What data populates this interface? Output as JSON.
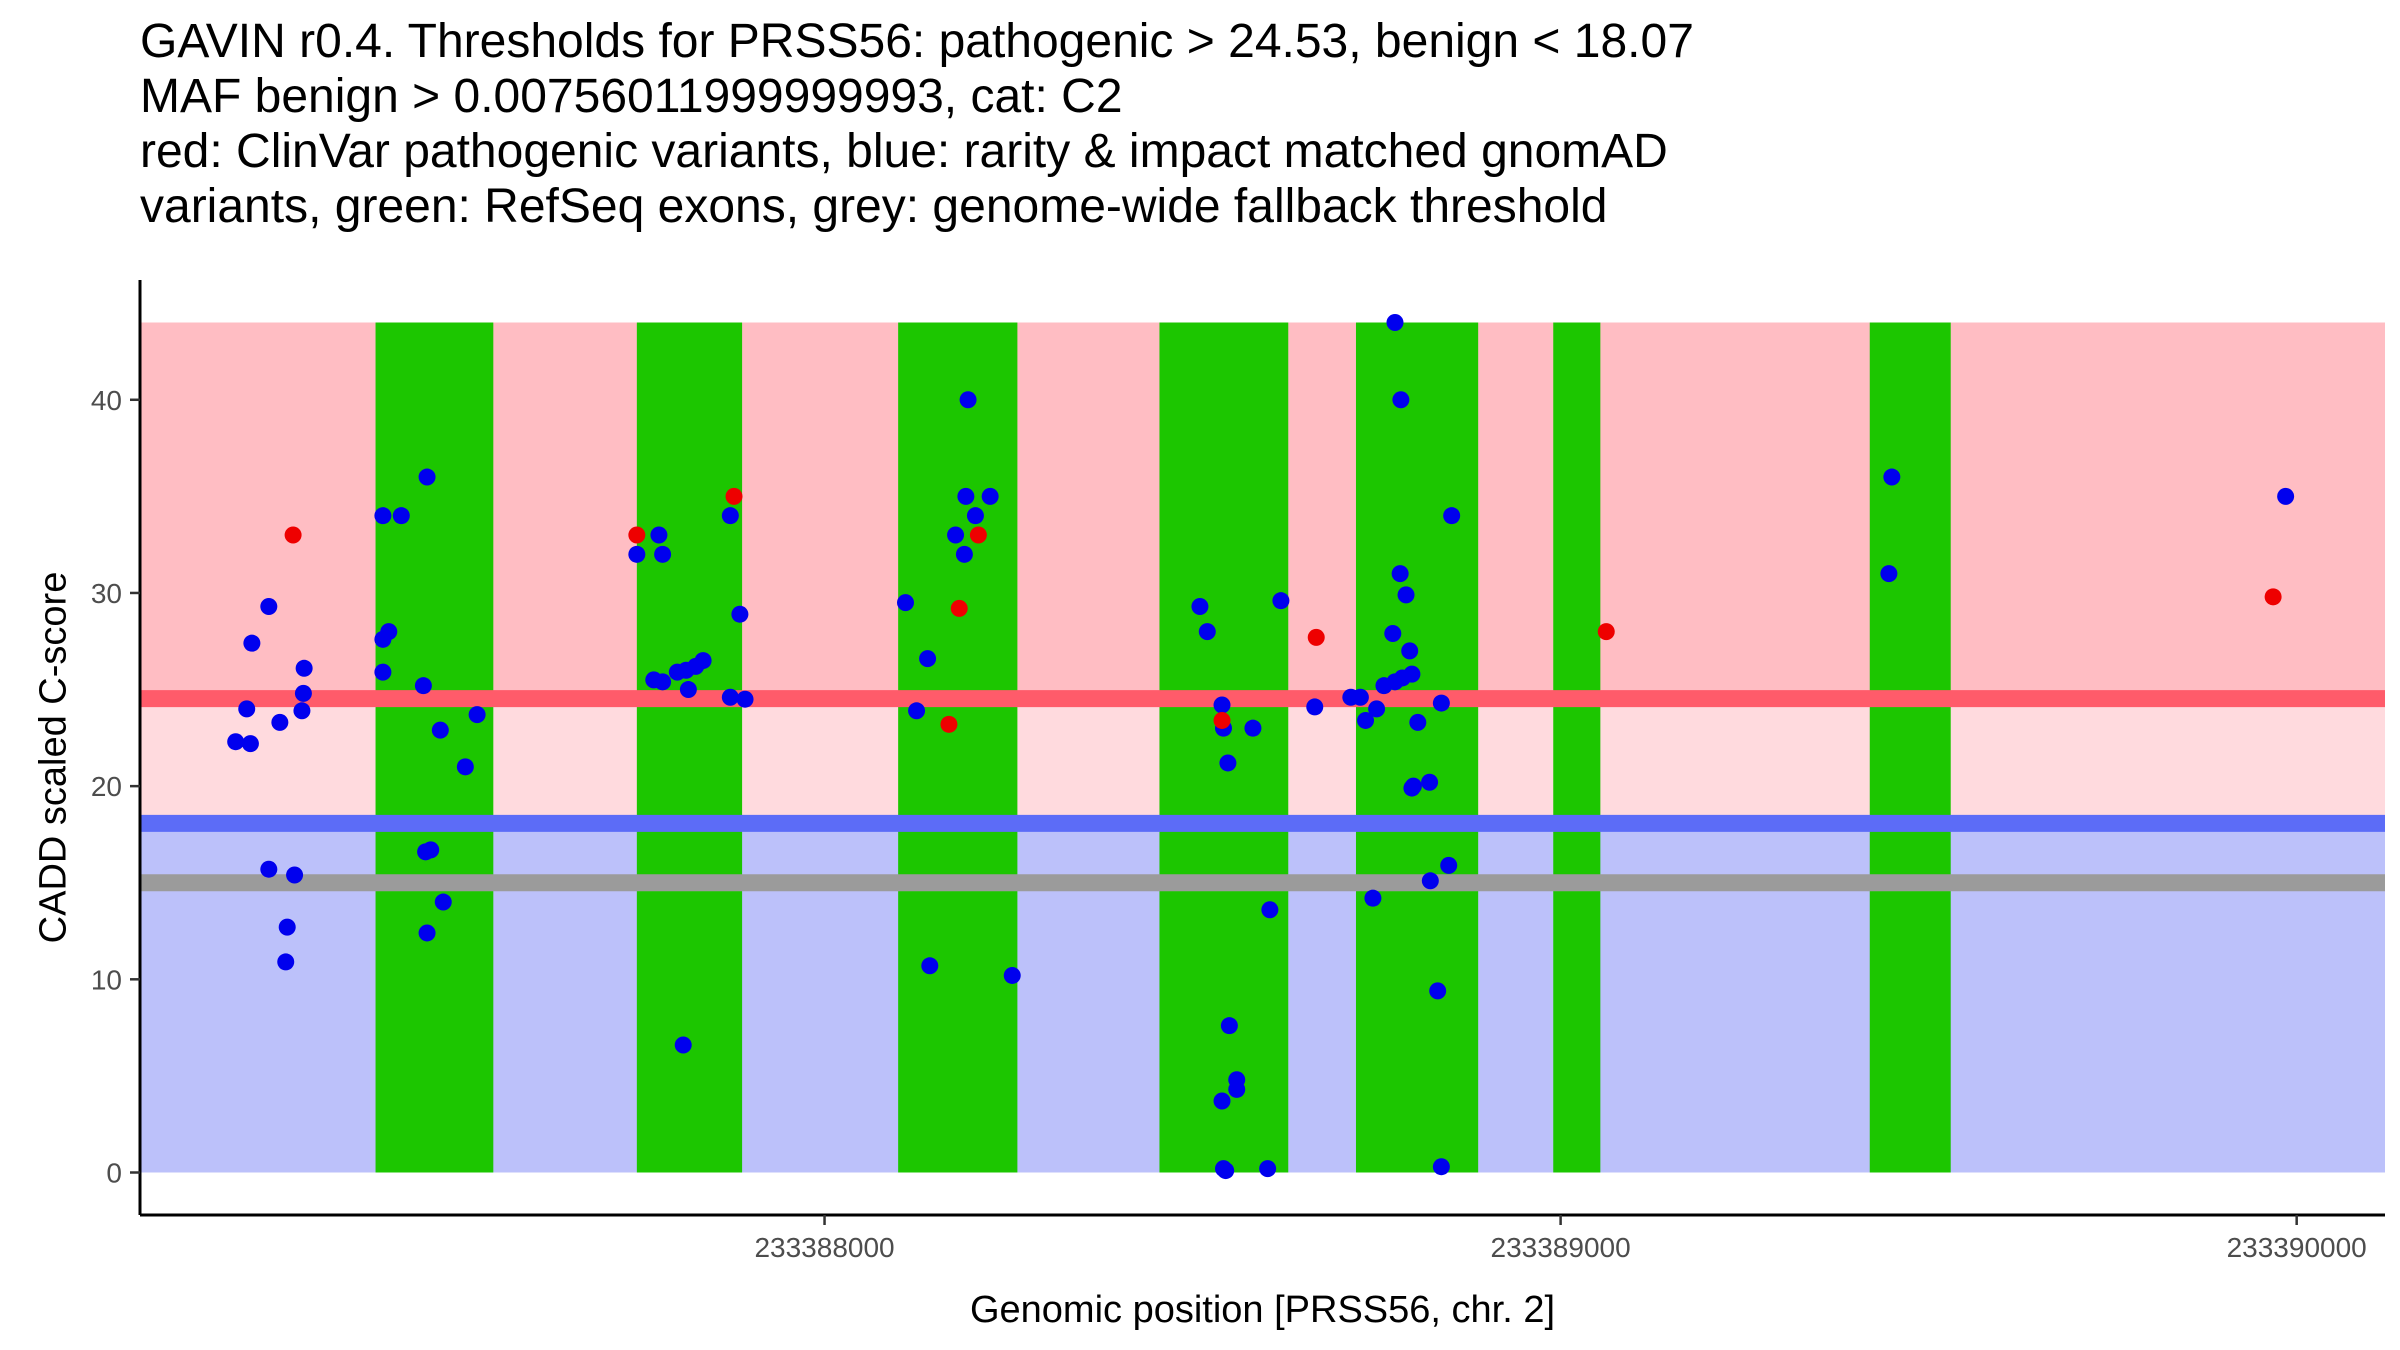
{
  "title_lines": [
    "GAVIN r0.4. Thresholds for PRSS56: pathogenic > 24.53, benign < 18.07",
    "MAF benign > 0.00756011999999993, cat: C2",
    "red: ClinVar pathogenic variants, blue: rarity & impact matched gnomAD",
    "variants, green: RefSeq exons, grey: genome-wide fallback threshold"
  ],
  "colors": {
    "pathogenic_zone": "#ffbdc3",
    "uncertain_zone": "#ffdade",
    "benign_zone": "#bcc1fa",
    "exon": "#1cc600",
    "pathogenic_line": "#ff5b6a",
    "benign_line": "#5c6cf7",
    "fallback_line": "#9b9b9b",
    "clinvar_point": "#ee0000",
    "gnomad_point": "#0000ee",
    "axis": "#000000"
  },
  "chart_data": {
    "type": "scatter",
    "xlabel": "Genomic position [PRSS56, chr. 2]",
    "ylabel": "CADD scaled C-score",
    "xlim": [
      233387070,
      233390120
    ],
    "ylim": [
      -2.2,
      46.2
    ],
    "x_ticks": [
      233388000,
      233389000,
      233390000
    ],
    "x_tick_labels": [
      "233388000",
      "233389000",
      "233390000"
    ],
    "y_ticks": [
      0,
      10,
      20,
      30,
      40
    ],
    "y_tick_labels": [
      "0",
      "10",
      "20",
      "30",
      "40"
    ],
    "thresholds": {
      "pathogenic": 24.53,
      "benign": 18.07,
      "fallback": 15,
      "max": 44
    },
    "exons": [
      [
        233387390,
        233387550
      ],
      [
        233387745,
        233387888
      ],
      [
        233388100,
        233388262
      ],
      [
        233388455,
        233388630
      ],
      [
        233388722,
        233388888
      ],
      [
        233388990,
        233389054
      ],
      [
        233389420,
        233389530
      ]
    ],
    "series": [
      {
        "name": "gnomAD",
        "color": "#0000ee",
        "points": [
          [
            233387200,
            22.3
          ],
          [
            233387220,
            22.2
          ],
          [
            233387215,
            24.0
          ],
          [
            233387222,
            27.4
          ],
          [
            233387245,
            29.3
          ],
          [
            233387260,
            23.3
          ],
          [
            233387290,
            23.9
          ],
          [
            233387292,
            24.8
          ],
          [
            233387293,
            26.1
          ],
          [
            233387245,
            15.7
          ],
          [
            233387280,
            15.4
          ],
          [
            233387270,
            12.7
          ],
          [
            233387268,
            10.9
          ],
          [
            233387400,
            34.0
          ],
          [
            233387425,
            34.0
          ],
          [
            233387460,
            36.0
          ],
          [
            233387400,
            25.9
          ],
          [
            233387400,
            27.6
          ],
          [
            233387408,
            28.0
          ],
          [
            233387455,
            25.2
          ],
          [
            233387478,
            22.9
          ],
          [
            233387512,
            21.0
          ],
          [
            233387528,
            23.7
          ],
          [
            233387458,
            16.6
          ],
          [
            233387465,
            16.7
          ],
          [
            233387482,
            14.0
          ],
          [
            233387460,
            12.4
          ],
          [
            233387745,
            32.0
          ],
          [
            233387775,
            33.0
          ],
          [
            233387780,
            32.0
          ],
          [
            233387768,
            25.5
          ],
          [
            233387780,
            25.4
          ],
          [
            233387800,
            25.9
          ],
          [
            233387812,
            26.0
          ],
          [
            233387825,
            26.2
          ],
          [
            233387835,
            26.5
          ],
          [
            233387815,
            25.0
          ],
          [
            233387872,
            34.0
          ],
          [
            233387885,
            28.9
          ],
          [
            233387872,
            24.6
          ],
          [
            233387892,
            24.5
          ],
          [
            233387808,
            6.6
          ],
          [
            233388110,
            29.5
          ],
          [
            233388140,
            26.6
          ],
          [
            233388125,
            23.9
          ],
          [
            233388178,
            33.0
          ],
          [
            233388192,
            35.0
          ],
          [
            233388225,
            35.0
          ],
          [
            233388190,
            32.0
          ],
          [
            233388205,
            34.0
          ],
          [
            233388195,
            40.0
          ],
          [
            233388143,
            10.7
          ],
          [
            233388255,
            10.2
          ],
          [
            233388510,
            29.3
          ],
          [
            233388520,
            28.0
          ],
          [
            233388540,
            24.2
          ],
          [
            233388542,
            23.0
          ],
          [
            233388548,
            21.2
          ],
          [
            233388582,
            23.0
          ],
          [
            233388605,
            13.6
          ],
          [
            233388620,
            29.6
          ],
          [
            233388666,
            24.1
          ],
          [
            233388550,
            7.6
          ],
          [
            233388560,
            4.8
          ],
          [
            233388560,
            4.3
          ],
          [
            233388540,
            3.7
          ],
          [
            233388545,
            0.1
          ],
          [
            233388542,
            0.2
          ],
          [
            233388602,
            0.2
          ],
          [
            233388715,
            24.6
          ],
          [
            233388728,
            24.6
          ],
          [
            233388735,
            23.4
          ],
          [
            233388750,
            24.0
          ],
          [
            233388760,
            25.2
          ],
          [
            233388775,
            25.4
          ],
          [
            233388772,
            27.9
          ],
          [
            233388782,
            31.0
          ],
          [
            233388785,
            25.6
          ],
          [
            233388790,
            29.9
          ],
          [
            233388798,
            25.8
          ],
          [
            233388795,
            27.0
          ],
          [
            233388806,
            23.3
          ],
          [
            233388822,
            20.2
          ],
          [
            233388798,
            19.9
          ],
          [
            233388800,
            20.0
          ],
          [
            233388838,
            24.3
          ],
          [
            233388823,
            15.1
          ],
          [
            233388848,
            15.9
          ],
          [
            233388745,
            14.2
          ],
          [
            233388833,
            9.4
          ],
          [
            233388838,
            0.3
          ],
          [
            233388775,
            44.0
          ],
          [
            233388783,
            40.0
          ],
          [
            233388852,
            34.0
          ],
          [
            233389450,
            36.0
          ],
          [
            233389446,
            31.0
          ],
          [
            233389985,
            35.0
          ]
        ]
      },
      {
        "name": "ClinVar",
        "color": "#ee0000",
        "points": [
          [
            233387278,
            33.0
          ],
          [
            233387745,
            33.0
          ],
          [
            233387877,
            35.0
          ],
          [
            233388183,
            29.2
          ],
          [
            233388209,
            33.0
          ],
          [
            233388169,
            23.2
          ],
          [
            233388540,
            23.4
          ],
          [
            233388668,
            27.7
          ],
          [
            233389062,
            28.0
          ],
          [
            233389968,
            29.8
          ]
        ]
      }
    ]
  }
}
